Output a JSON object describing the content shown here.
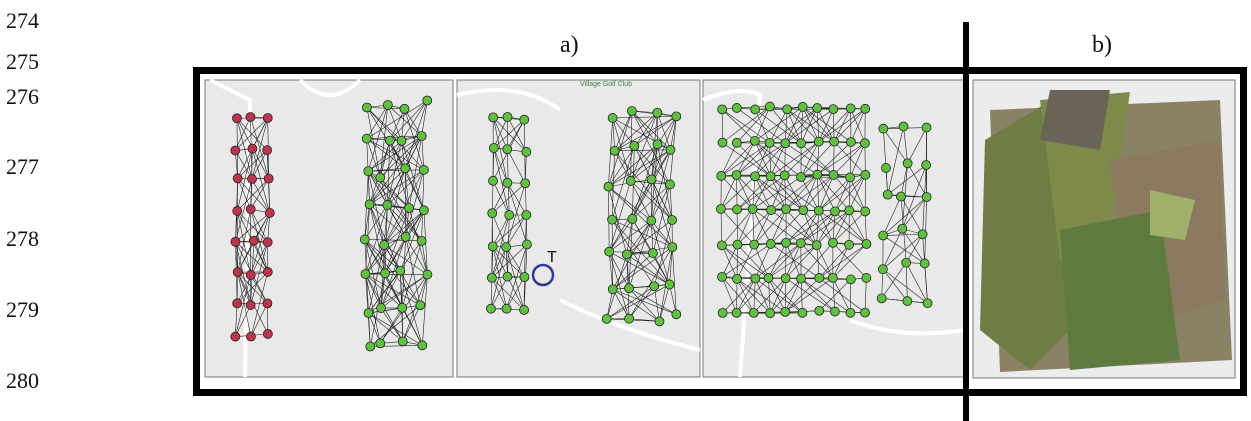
{
  "line_numbers": [
    "274",
    "275",
    "276",
    "277",
    "278",
    "279",
    "280"
  ],
  "figure": {
    "a_label": "a)",
    "b_label": "b)",
    "target_label": "T",
    "map_label": "Village Golf Club"
  }
}
